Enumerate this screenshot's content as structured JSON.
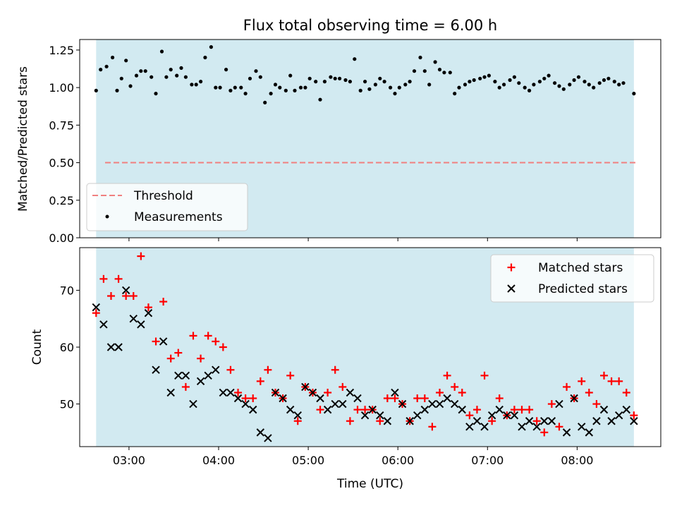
{
  "title": "Flux total observing time = 6.00 h",
  "colors": {
    "shade": "#add8e6",
    "threshold": "#f08080",
    "matched": "#ff0000",
    "predicted": "#000000",
    "measurement": "#000000"
  },
  "chart_data": [
    {
      "type": "scatter",
      "ylabel": "Matched/Predicted stars",
      "xlabel": "",
      "xlim": [
        "02:27",
        "08:56"
      ],
      "ylim": [
        0,
        1.32
      ],
      "y_ticks": [
        0,
        0.25,
        0.5,
        0.75,
        1.0,
        1.25
      ],
      "y_tick_labels": [
        "0.00",
        "0.25",
        "0.50",
        "0.75",
        "1.00",
        "1.25"
      ],
      "observing_window": [
        "02:38",
        "08:38"
      ],
      "threshold": 0.5,
      "legend": {
        "placement": "lower-left",
        "entries": [
          {
            "key": "threshold",
            "label": "Threshold"
          },
          {
            "key": "measurements",
            "label": "Measurements"
          }
        ]
      },
      "series": [
        {
          "name": "Measurements",
          "x": [
            "02:38",
            "02:41",
            "02:45",
            "02:49",
            "02:52",
            "02:55",
            "02:58",
            "03:01",
            "03:05",
            "03:08",
            "03:11",
            "03:15",
            "03:18",
            "03:22",
            "03:25",
            "03:28",
            "03:32",
            "03:35",
            "03:38",
            "03:42",
            "03:45",
            "03:48",
            "03:51",
            "03:55",
            "03:58",
            "04:01",
            "04:05",
            "04:08",
            "04:11",
            "04:15",
            "04:18",
            "04:21",
            "04:25",
            "04:28",
            "04:31",
            "04:35",
            "04:38",
            "04:41",
            "04:45",
            "04:48",
            "04:51",
            "04:55",
            "04:58",
            "05:01",
            "05:05",
            "05:08",
            "05:11",
            "05:15",
            "05:18",
            "05:21",
            "05:25",
            "05:28",
            "05:31",
            "05:35",
            "05:38",
            "05:41",
            "05:45",
            "05:48",
            "05:51",
            "05:55",
            "05:58",
            "06:01",
            "06:05",
            "06:08",
            "06:11",
            "06:15",
            "06:18",
            "06:21",
            "06:25",
            "06:28",
            "06:31",
            "06:35",
            "06:38",
            "06:41",
            "06:45",
            "06:48",
            "06:51",
            "06:55",
            "06:58",
            "07:01",
            "07:05",
            "07:08",
            "07:11",
            "07:15",
            "07:18",
            "07:21",
            "07:25",
            "07:28",
            "07:31",
            "07:35",
            "07:38",
            "07:41",
            "07:45",
            "07:48",
            "07:51",
            "07:55",
            "07:58",
            "08:01",
            "08:05",
            "08:08",
            "08:11",
            "08:15",
            "08:18",
            "08:21",
            "08:25",
            "08:28",
            "08:31",
            "08:38"
          ],
          "y": [
            0.98,
            1.12,
            1.14,
            1.2,
            0.98,
            1.06,
            1.18,
            1.01,
            1.08,
            1.11,
            1.11,
            1.07,
            0.96,
            1.24,
            1.07,
            1.12,
            1.08,
            1.13,
            1.07,
            1.02,
            1.02,
            1.04,
            1.2,
            1.27,
            1.0,
            1.0,
            1.12,
            0.98,
            1.0,
            1.0,
            0.96,
            1.06,
            1.11,
            1.07,
            0.9,
            0.96,
            1.02,
            1.0,
            0.98,
            1.08,
            0.98,
            1.0,
            1.0,
            1.06,
            1.04,
            0.92,
            1.04,
            1.07,
            1.06,
            1.06,
            1.05,
            1.04,
            1.19,
            0.98,
            1.04,
            0.99,
            1.02,
            1.06,
            1.04,
            1.0,
            0.96,
            1.0,
            1.02,
            1.04,
            1.11,
            1.2,
            1.11,
            1.02,
            1.17,
            1.12,
            1.1,
            1.1,
            0.96,
            1.0,
            1.02,
            1.04,
            1.05,
            1.06,
            1.07,
            1.08,
            1.04,
            1.0,
            1.02,
            1.05,
            1.07,
            1.03,
            1.0,
            0.98,
            1.02,
            1.04,
            1.06,
            1.08,
            1.03,
            1.01,
            0.99,
            1.02,
            1.05,
            1.07,
            1.04,
            1.02,
            1.0,
            1.03,
            1.05,
            1.06,
            1.04,
            1.02,
            1.03,
            0.96
          ]
        }
      ]
    },
    {
      "type": "scatter",
      "ylabel": "Count",
      "xlabel": "Time (UTC)",
      "xlim": [
        "02:27",
        "08:56"
      ],
      "ylim": [
        42.5,
        77.5
      ],
      "y_ticks": [
        50,
        60,
        70
      ],
      "x_ticks": [
        "03:00",
        "04:00",
        "05:00",
        "06:00",
        "07:00",
        "08:00"
      ],
      "observing_window": [
        "02:38",
        "08:38"
      ],
      "legend": {
        "placement": "top-right",
        "entries": [
          {
            "key": "matched",
            "label": "Matched stars"
          },
          {
            "key": "predicted",
            "label": "Predicted stars"
          }
        ]
      },
      "series": [
        {
          "name": "Matched stars",
          "x": [
            "02:38",
            "02:43",
            "02:48",
            "02:53",
            "02:58",
            "03:03",
            "03:08",
            "03:13",
            "03:18",
            "03:23",
            "03:28",
            "03:33",
            "03:38",
            "03:43",
            "03:48",
            "03:53",
            "03:58",
            "04:03",
            "04:08",
            "04:13",
            "04:18",
            "04:23",
            "04:28",
            "04:33",
            "04:38",
            "04:43",
            "04:48",
            "04:53",
            "04:58",
            "05:03",
            "05:08",
            "05:13",
            "05:18",
            "05:23",
            "05:28",
            "05:33",
            "05:38",
            "05:43",
            "05:48",
            "05:53",
            "05:58",
            "06:03",
            "06:08",
            "06:13",
            "06:18",
            "06:23",
            "06:28",
            "06:33",
            "06:38",
            "06:43",
            "06:48",
            "06:53",
            "06:58",
            "07:03",
            "07:08",
            "07:13",
            "07:18",
            "07:23",
            "07:28",
            "07:33",
            "07:38",
            "07:43",
            "07:48",
            "07:53",
            "07:58",
            "08:03",
            "08:08",
            "08:13",
            "08:18",
            "08:23",
            "08:28",
            "08:33",
            "08:38"
          ],
          "y": [
            66,
            72,
            69,
            72,
            69,
            69,
            76,
            67,
            61,
            68,
            58,
            59,
            53,
            62,
            58,
            62,
            61,
            60,
            56,
            52,
            51,
            51,
            54,
            56,
            52,
            51,
            55,
            47,
            53,
            52,
            49,
            52,
            56,
            53,
            47,
            49,
            49,
            49,
            47,
            51,
            51,
            50,
            47,
            51,
            51,
            46,
            52,
            55,
            53,
            52,
            48,
            49,
            55,
            47,
            51,
            48,
            49,
            49,
            49,
            47,
            45,
            50,
            46,
            53,
            51,
            54,
            52,
            50,
            55,
            54,
            54,
            52,
            48
          ]
        },
        {
          "name": "Predicted stars",
          "x": [
            "02:38",
            "02:43",
            "02:48",
            "02:53",
            "02:58",
            "03:03",
            "03:08",
            "03:13",
            "03:18",
            "03:23",
            "03:28",
            "03:33",
            "03:38",
            "03:43",
            "03:48",
            "03:53",
            "03:58",
            "04:03",
            "04:08",
            "04:13",
            "04:18",
            "04:23",
            "04:28",
            "04:33",
            "04:38",
            "04:43",
            "04:48",
            "04:53",
            "04:58",
            "05:03",
            "05:08",
            "05:13",
            "05:18",
            "05:23",
            "05:28",
            "05:33",
            "05:38",
            "05:43",
            "05:48",
            "05:53",
            "05:58",
            "06:03",
            "06:08",
            "06:13",
            "06:18",
            "06:23",
            "06:28",
            "06:33",
            "06:38",
            "06:43",
            "06:48",
            "06:53",
            "06:58",
            "07:03",
            "07:08",
            "07:13",
            "07:18",
            "07:23",
            "07:28",
            "07:33",
            "07:38",
            "07:43",
            "07:48",
            "07:53",
            "07:58",
            "08:03",
            "08:08",
            "08:13",
            "08:18",
            "08:23",
            "08:28",
            "08:33",
            "08:38"
          ],
          "y": [
            67,
            64,
            60,
            60,
            70,
            65,
            64,
            66,
            56,
            61,
            52,
            55,
            55,
            50,
            54,
            55,
            56,
            52,
            52,
            51,
            50,
            49,
            45,
            44,
            52,
            51,
            49,
            48,
            53,
            52,
            51,
            49,
            50,
            50,
            52,
            51,
            48,
            49,
            48,
            47,
            52,
            50,
            47,
            48,
            49,
            50,
            50,
            51,
            50,
            49,
            46,
            47,
            46,
            48,
            49,
            48,
            48,
            46,
            47,
            46,
            47,
            47,
            50,
            45,
            51,
            46,
            45,
            47,
            49,
            47,
            48,
            49,
            47
          ]
        }
      ]
    }
  ]
}
